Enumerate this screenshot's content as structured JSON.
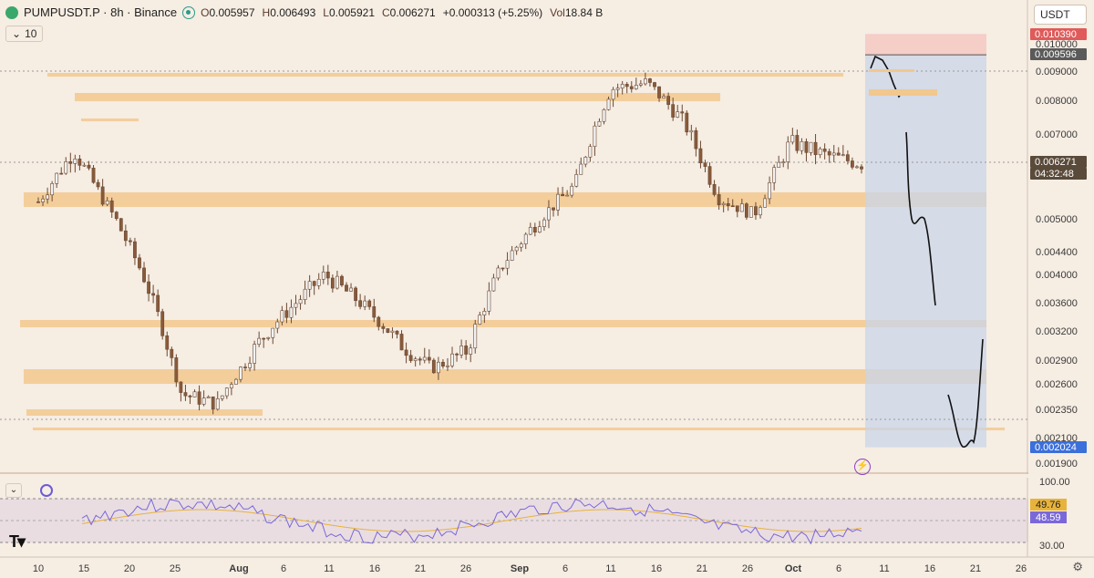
{
  "header": {
    "symbol": "PUMPUSDT.P · 8h · Binance",
    "open_label": "O",
    "open": "0.005957",
    "high_label": "H",
    "high": "0.006493",
    "low_label": "L",
    "low": "0.005921",
    "close_label": "C",
    "close": "0.006271",
    "change": "+0.000313 (+5.25%)",
    "vol_label": "Vol",
    "vol": "18.84 B",
    "interval_count": "10"
  },
  "currency_button": "USDT",
  "price_axis": {
    "ticks": [
      "0.010000",
      "0.009000",
      "0.008000",
      "0.007000",
      "0.005000",
      "0.004400",
      "0.004000",
      "0.003600",
      "0.003200",
      "0.002900",
      "0.002600",
      "0.002350",
      "0.002100",
      "0.001900"
    ],
    "tags": [
      {
        "label": "0.010390",
        "color": "#e05a5a"
      },
      {
        "label": "0.009596",
        "color": "#5a5a5a"
      },
      {
        "label": "0.006271",
        "color": "#5a4a3a"
      },
      {
        "label": "04:32:48",
        "color": "#5a4a3a"
      },
      {
        "label": "0.002024",
        "color": "#3b6fd9"
      }
    ]
  },
  "time_axis": [
    "10",
    "15",
    "20",
    "25",
    "Aug",
    "6",
    "11",
    "16",
    "21",
    "26",
    "Sep",
    "6",
    "11",
    "16",
    "21",
    "26",
    "Oct",
    "6",
    "11",
    "16",
    "21",
    "26"
  ],
  "rsi": {
    "axis": [
      "100.00",
      "30.00"
    ],
    "ma_value": "49.76",
    "rsi_value": "48.59",
    "ma_color": "#e8b33a",
    "rsi_color": "#7b68d8"
  },
  "colors": {
    "up": "#f2f2f2",
    "down": "#8a5a3a",
    "zone": "#f2c88e",
    "projection": "#c9d4e8",
    "stop": "#f5c6c0"
  },
  "chart_data": {
    "type": "candlestick",
    "title": "PUMPUSDT.P · 8h · Binance",
    "x_axis": [
      "10",
      "15",
      "20",
      "25",
      "Aug",
      "6",
      "11",
      "16",
      "21",
      "26",
      "Sep",
      "6",
      "11",
      "16",
      "21",
      "26",
      "Oct",
      "6",
      "11",
      "16",
      "21",
      "26"
    ],
    "ylim": [
      0.0019,
      0.0104
    ],
    "last_price": 0.006271,
    "support_resistance_zones": [
      0.0089,
      0.0082,
      0.0075,
      0.0054,
      0.0033,
      0.0027,
      0.0023,
      0.00215
    ],
    "projection_target_high": 0.01039,
    "projection_entry": 0.009596,
    "projection_target_low": 0.002024,
    "close_path_samples": [
      0.0054,
      0.0066,
      0.0052,
      0.0039,
      0.0025,
      0.0024,
      0.003,
      0.0035,
      0.004,
      0.0036,
      0.0031,
      0.0028,
      0.003,
      0.0042,
      0.005,
      0.0058,
      0.0084,
      0.0086,
      0.0074,
      0.0055,
      0.0051,
      0.0068,
      0.0065,
      0.0063
    ]
  }
}
